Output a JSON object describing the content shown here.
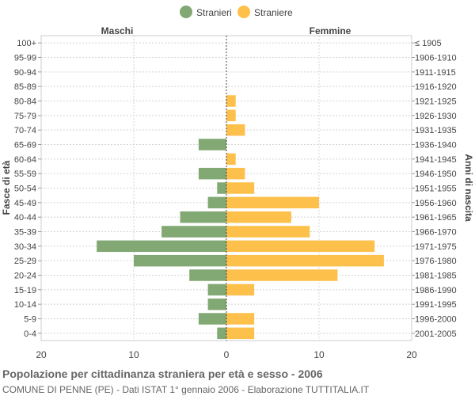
{
  "chart_data": {
    "type": "bar",
    "orientation": "horizontal",
    "title": "Popolazione per cittadinanza straniera per età e sesso - 2006",
    "subtitle": "COMUNE DI PENNE (PE) - Dati ISTAT 1° gennaio 2006 - Elaborazione TUTTITALIA.IT",
    "left_header": "Maschi",
    "right_header": "Femmine",
    "ylabel_left": "Fasce di età",
    "ylabel_right": "Anni di nascita",
    "xlim": [
      -20,
      20
    ],
    "x_ticks": [
      -20,
      -10,
      0,
      10,
      20
    ],
    "x_tick_labels": [
      "20",
      "10",
      "0",
      "10",
      "20"
    ],
    "grid": true,
    "legend_position": "top-center",
    "categories": [
      "100+",
      "95-99",
      "90-94",
      "85-89",
      "80-84",
      "75-79",
      "70-74",
      "65-69",
      "60-64",
      "55-59",
      "50-54",
      "45-49",
      "40-44",
      "35-39",
      "30-34",
      "25-29",
      "20-24",
      "15-19",
      "10-14",
      "5-9",
      "0-4"
    ],
    "birth_years": [
      "≤ 1905",
      "1906-1910",
      "1911-1915",
      "1916-1920",
      "1921-1925",
      "1926-1930",
      "1931-1935",
      "1936-1940",
      "1941-1945",
      "1946-1950",
      "1951-1955",
      "1956-1960",
      "1961-1965",
      "1966-1970",
      "1971-1975",
      "1976-1980",
      "1981-1985",
      "1986-1990",
      "1991-1995",
      "1996-2000",
      "2001-2005"
    ],
    "series": [
      {
        "name": "Stranieri",
        "color": "#82a873",
        "values": [
          0,
          0,
          0,
          0,
          0,
          0,
          0,
          3,
          0,
          3,
          1,
          2,
          5,
          7,
          14,
          10,
          4,
          2,
          2,
          3,
          1
        ]
      },
      {
        "name": "Straniere",
        "color": "#fdc04a",
        "values": [
          0,
          0,
          0,
          0,
          1,
          1,
          2,
          0,
          1,
          2,
          3,
          10,
          7,
          9,
          16,
          17,
          12,
          3,
          0,
          3,
          3
        ]
      }
    ]
  }
}
